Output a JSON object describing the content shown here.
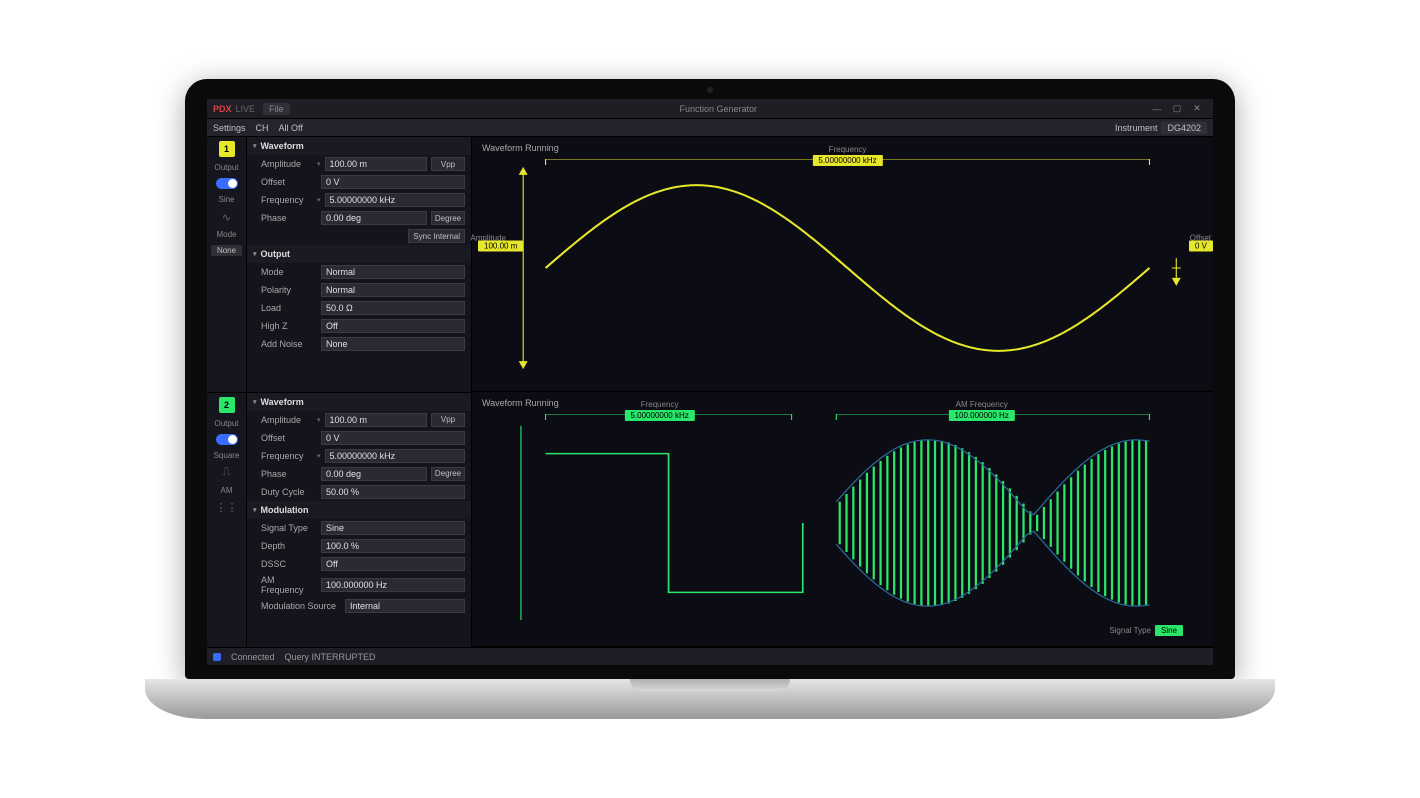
{
  "app": {
    "brand": "PDX",
    "brand_suffix": "LIVE",
    "file_label": "File",
    "title": "Function Generator",
    "instrument_label": "Instrument",
    "instrument_value": "DG4202"
  },
  "toolbar": {
    "settings": "Settings",
    "ch": "CH",
    "off": "All Off"
  },
  "colors": {
    "ch1": "#e6e62a",
    "ch2": "#2ae66a",
    "panel_bg": "#14141c",
    "chart_bg": "#0c0c14",
    "tag_ch1": "#e6e62a",
    "tag_ch2": "#2ae66a",
    "envelope": "#2a6a9a"
  },
  "channel1": {
    "num": "1",
    "output_label": "Output",
    "wave_label": "Sine",
    "mode_label": "Mode",
    "mode_value": "None",
    "waveform": {
      "title": "Waveform",
      "amplitude_label": "Amplitude",
      "amplitude_value": "100.00 m",
      "amplitude_unit": "Vpp",
      "offset_label": "Offset",
      "offset_value": "0 V",
      "frequency_label": "Frequency",
      "frequency_value": "5.00000000 kHz",
      "phase_label": "Phase",
      "phase_value": "0.00 deg",
      "phase_unit": "Degree",
      "sync_btn": "Sync Internal"
    },
    "output": {
      "title": "Output",
      "mode_label": "Mode",
      "mode_value": "Normal",
      "polarity_label": "Polarity",
      "polarity_value": "Normal",
      "load_label": "Load",
      "load_value": "50.0 Ω",
      "highz_label": "High Z",
      "highz_value": "Off",
      "noise_label": "Add Noise",
      "noise_value": "None"
    }
  },
  "channel2": {
    "num": "2",
    "output_label": "Output",
    "wave_label": "Square",
    "mode_label": "AM",
    "mode_icon": "⋮⋮",
    "waveform": {
      "title": "Waveform",
      "amplitude_label": "Amplitude",
      "amplitude_value": "100.00 m",
      "amplitude_unit": "Vpp",
      "offset_label": "Offset",
      "offset_value": "0 V",
      "frequency_label": "Frequency",
      "frequency_value": "5.00000000 kHz",
      "phase_label": "Phase",
      "phase_value": "0.00 deg",
      "phase_unit": "Degree",
      "duty_label": "Duty Cycle",
      "duty_value": "50.00 %"
    },
    "modulation": {
      "title": "Modulation",
      "signal_type_label": "Signal Type",
      "signal_type_value": "Sine",
      "depth_label": "Depth",
      "depth_value": "100.0 %",
      "dssc_label": "DSSC",
      "dssc_value": "Off",
      "am_freq_label": "AM Frequency",
      "am_freq_value": "100.000000 Hz",
      "mod_source_label": "Modulation Source",
      "mod_source_value": "Internal"
    }
  },
  "chart1": {
    "title": "Waveform Running",
    "freq_header": "Frequency",
    "freq_tag": "5.00000000 kHz",
    "amp_header": "Amplitude",
    "amp_tag": "100.00 m",
    "offset_header": "Offset",
    "offset_tag": "0 V",
    "sine": {
      "color": "#e6e62a",
      "stroke_width": 2,
      "cycles": 1
    }
  },
  "chart2": {
    "title": "Waveform Running",
    "freq_header": "Frequency",
    "freq_tag": "5.00000000 kHz",
    "amfreq_header": "AM Frequency",
    "amfreq_tag": "100.000000 Hz",
    "signal_type_label": "Signal Type",
    "signal_type_tag": "Sine",
    "square": {
      "color": "#2ae66a",
      "stroke_width": 1.5
    },
    "am": {
      "carrier_color": "#2ae66a",
      "envelope_color": "#2a6a9a",
      "bars": 46
    }
  },
  "status": {
    "connected": "Connected",
    "query": "Query INTERRUPTED"
  }
}
